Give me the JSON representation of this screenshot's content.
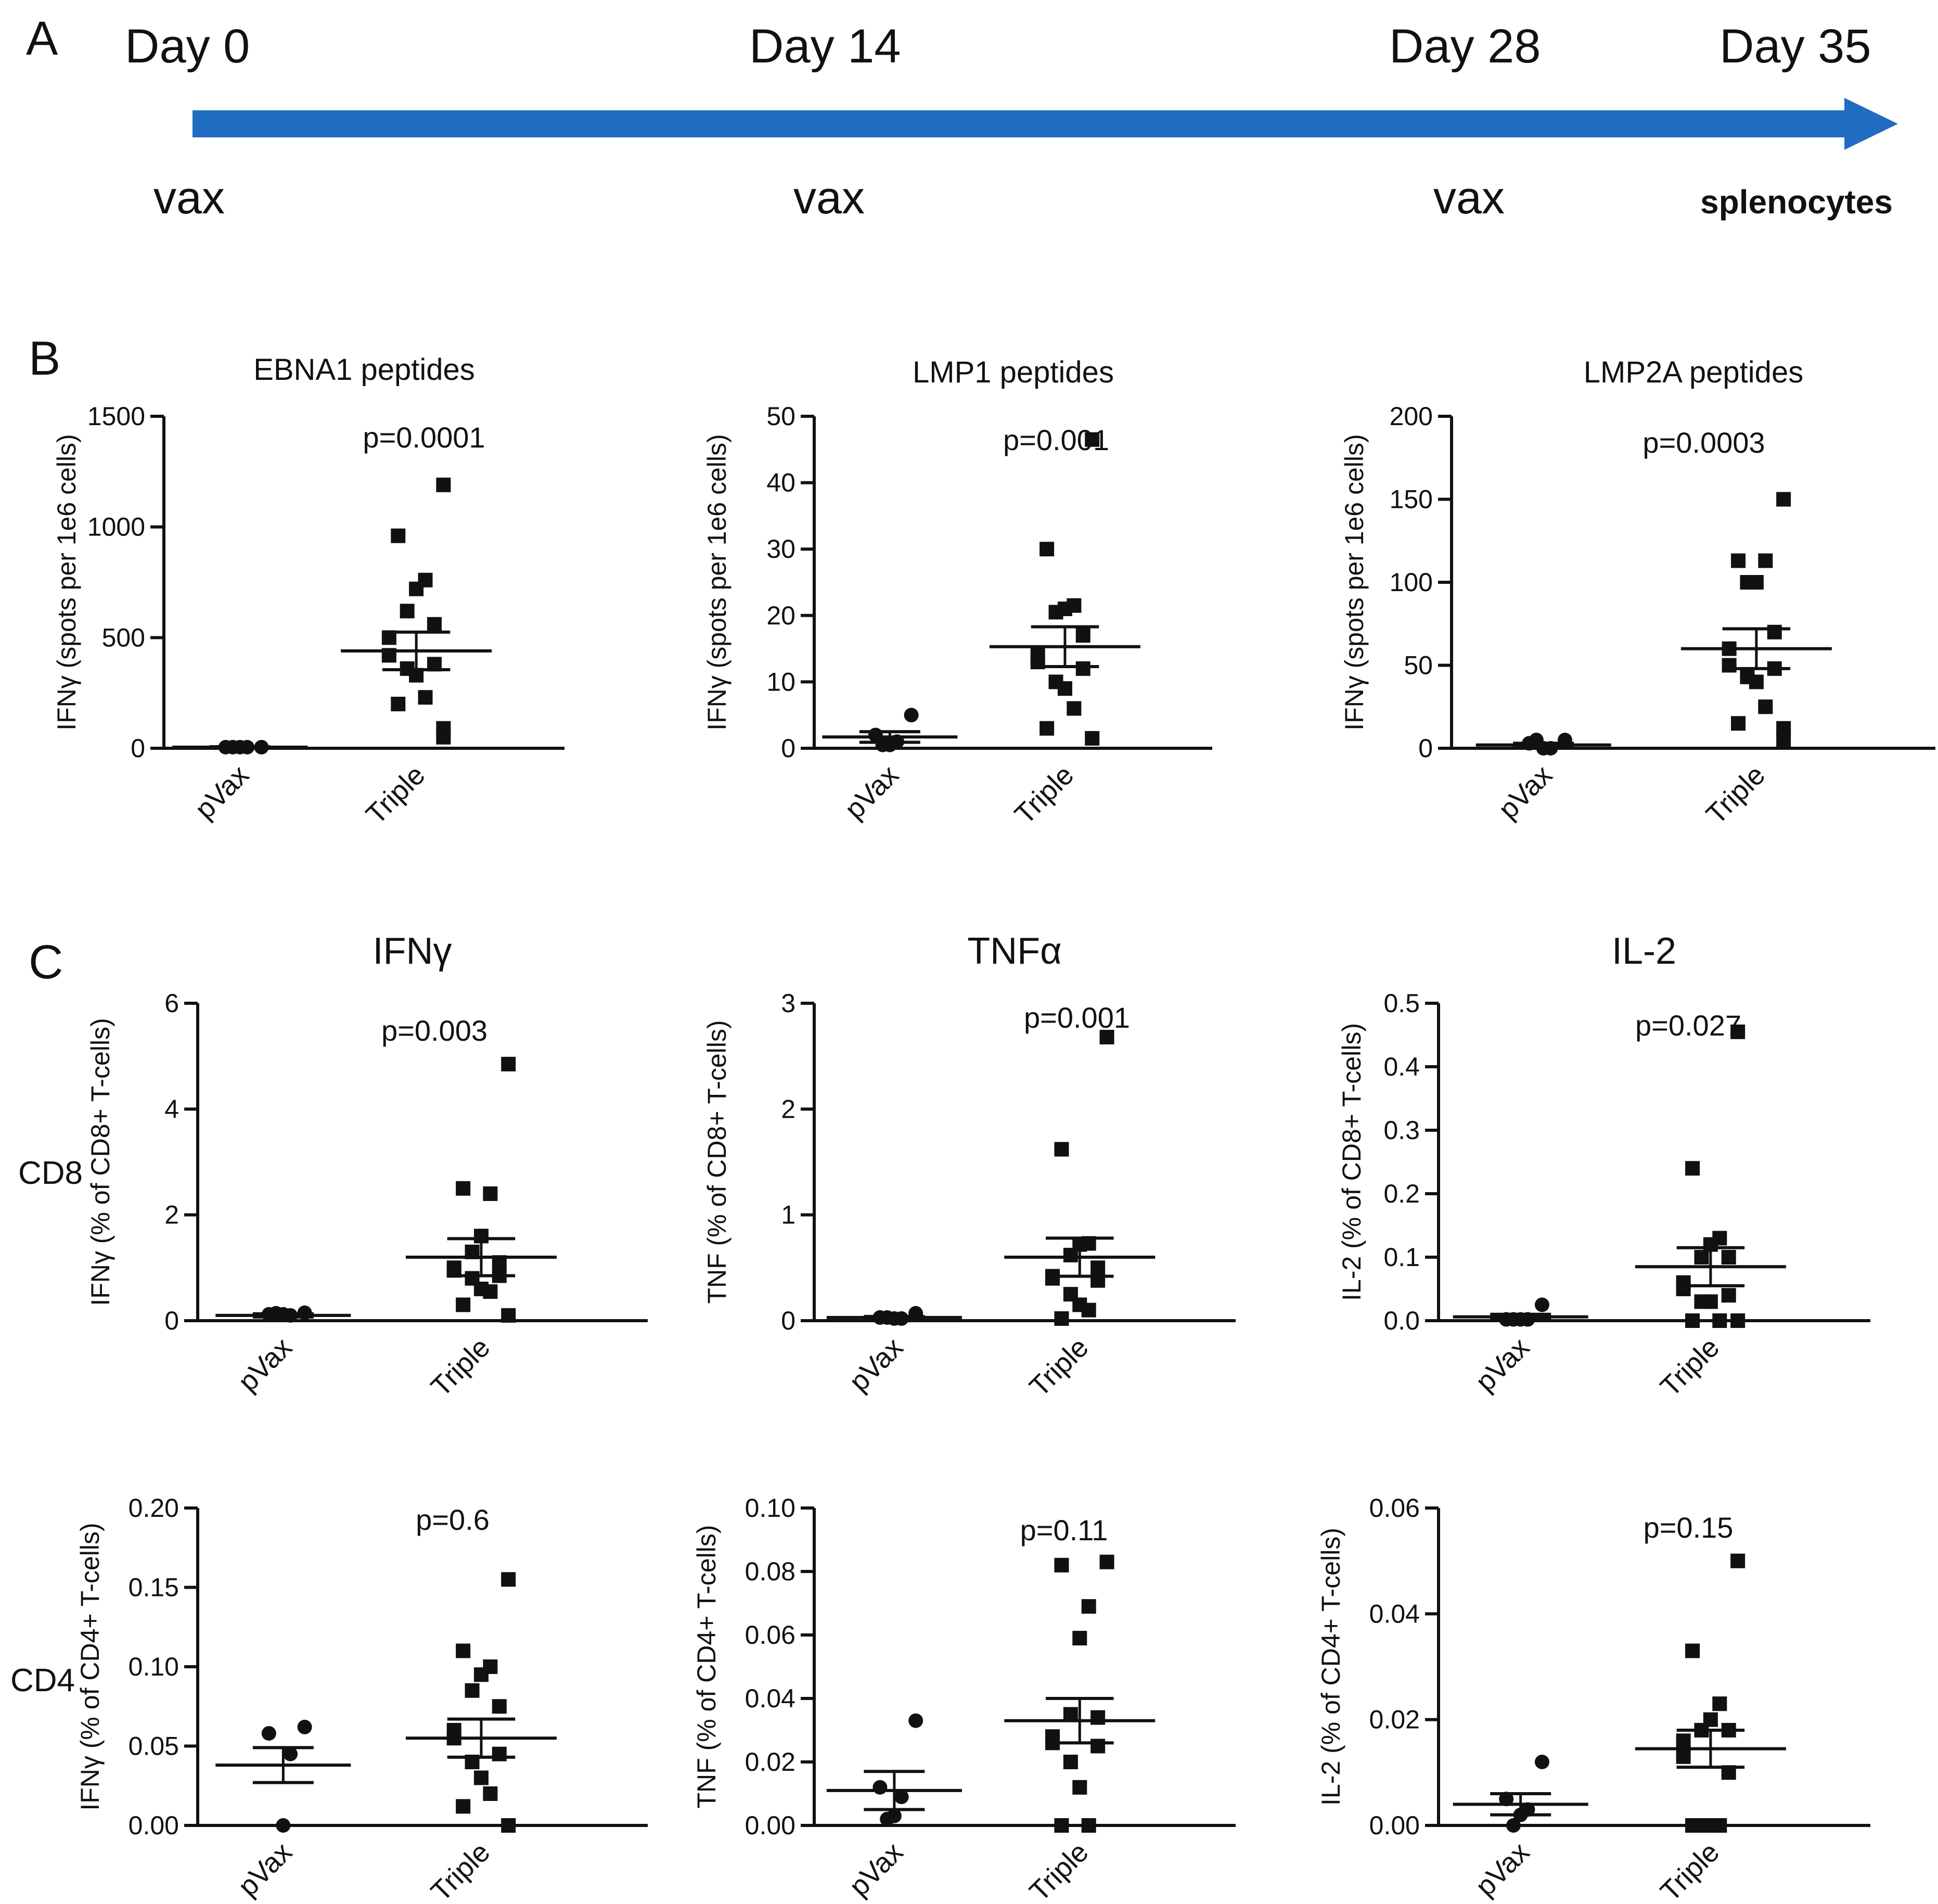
{
  "panels": {
    "a": "A",
    "b": "B",
    "c": "C"
  },
  "timeline": {
    "color": "#1f6cc0",
    "days": [
      "Day 0",
      "Day 14",
      "Day 28",
      "Day 35"
    ],
    "events": [
      "vax",
      "vax",
      "vax",
      "splenocytes"
    ]
  },
  "rows": {
    "cd8": "CD8",
    "cd4": "CD4"
  },
  "chart_data": [
    {
      "type": "scatter",
      "title": "EBNA1 peptides",
      "pvalue": "p=0.0001",
      "ylabel": "IFNγ (spots per 1e6 cells)",
      "ylim": [
        0,
        1500
      ],
      "yticks": [
        0,
        500,
        1000,
        1500
      ],
      "categories": [
        "pVax",
        "Triple"
      ],
      "series": [
        {
          "name": "pVax",
          "marker": "circle",
          "mean": 5,
          "sem": 2,
          "values": [
            5,
            5,
            5,
            5,
            5
          ]
        },
        {
          "name": "Triple",
          "marker": "square",
          "mean": 440,
          "sem": 85,
          "values": [
            1190,
            960,
            760,
            720,
            620,
            560,
            500,
            420,
            380,
            360,
            330,
            230,
            200,
            90,
            50
          ]
        }
      ]
    },
    {
      "type": "scatter",
      "title": "LMP1 peptides",
      "pvalue": "p=0.001",
      "ylabel": "IFNγ (spots per 1e6 cells)",
      "ylim": [
        0,
        50
      ],
      "yticks": [
        0,
        10,
        20,
        30,
        40,
        50
      ],
      "categories": [
        "pVax",
        "Triple"
      ],
      "series": [
        {
          "name": "pVax",
          "marker": "circle",
          "mean": 1.7,
          "sem": 0.8,
          "values": [
            5,
            2,
            1,
            0.5,
            0.5
          ]
        },
        {
          "name": "Triple",
          "marker": "square",
          "mean": 15.3,
          "sem": 3,
          "values": [
            46.5,
            30,
            21.5,
            21,
            20.5,
            17,
            14,
            13,
            12,
            10,
            9,
            6,
            3,
            1.5
          ]
        }
      ]
    },
    {
      "type": "scatter",
      "title": "LMP2A peptides",
      "pvalue": "p=0.0003",
      "ylabel": "IFNγ (spots per 1e6 cells)",
      "ylim": [
        0,
        200
      ],
      "yticks": [
        0,
        50,
        100,
        150,
        200
      ],
      "categories": [
        "pVax",
        "Triple"
      ],
      "series": [
        {
          "name": "pVax",
          "marker": "circle",
          "mean": 2,
          "sem": 1,
          "values": [
            5,
            3,
            0,
            0,
            5
          ]
        },
        {
          "name": "Triple",
          "marker": "square",
          "mean": 60,
          "sem": 12,
          "values": [
            150,
            113,
            113,
            100,
            100,
            70,
            60,
            50,
            48,
            43,
            40,
            25,
            15,
            12,
            5
          ]
        }
      ]
    },
    {
      "type": "scatter",
      "title": "IFNγ",
      "pvalue": "p=0.003",
      "ylabel": "IFNγ (% of CD8+ T-cells)",
      "ylim": [
        0,
        6
      ],
      "yticks": [
        0,
        2,
        4,
        6
      ],
      "categories": [
        "pVax",
        "Triple"
      ],
      "series": [
        {
          "name": "pVax",
          "marker": "circle",
          "mean": 0.1,
          "sem": 0.03,
          "values": [
            0.15,
            0.12,
            0.1,
            0.12,
            0.14
          ]
        },
        {
          "name": "Triple",
          "marker": "square",
          "mean": 1.2,
          "sem": 0.35,
          "values": [
            4.85,
            2.5,
            2.4,
            1.6,
            1.3,
            1.1,
            1.0,
            0.95,
            0.85,
            0.8,
            0.6,
            0.55,
            0.3,
            0.1
          ]
        }
      ]
    },
    {
      "type": "scatter",
      "title": "TNFα",
      "pvalue": "p=0.001",
      "ylabel": "TNF (% of CD8+ T-cells)",
      "ylim": [
        0,
        3
      ],
      "yticks": [
        0,
        1,
        2,
        3
      ],
      "categories": [
        "pVax",
        "Triple"
      ],
      "series": [
        {
          "name": "pVax",
          "marker": "circle",
          "mean": 0.03,
          "sem": 0.01,
          "values": [
            0.07,
            0.03,
            0.02,
            0.02,
            0.03
          ]
        },
        {
          "name": "Triple",
          "marker": "square",
          "mean": 0.6,
          "sem": 0.18,
          "values": [
            2.68,
            1.62,
            0.73,
            0.72,
            0.62,
            0.5,
            0.42,
            0.4,
            0.38,
            0.25,
            0.15,
            0.1,
            0.02
          ]
        }
      ]
    },
    {
      "type": "scatter",
      "title": "IL-2",
      "pvalue": "p=0.027",
      "ylabel": "IL-2 (% of CD8+ T-cells)",
      "ylim": [
        0,
        0.5
      ],
      "yticks": [
        0.0,
        0.1,
        0.2,
        0.3,
        0.4,
        0.5
      ],
      "tickdecimals": 1,
      "categories": [
        "pVax",
        "Triple"
      ],
      "series": [
        {
          "name": "pVax",
          "marker": "circle",
          "mean": 0.006,
          "sem": 0.004,
          "values": [
            0.025,
            0.002,
            0.002,
            0.002,
            0.002
          ]
        },
        {
          "name": "Triple",
          "marker": "square",
          "mean": 0.085,
          "sem": 0.03,
          "values": [
            0.455,
            0.24,
            0.13,
            0.12,
            0.1,
            0.1,
            0.06,
            0.05,
            0.04,
            0.03,
            0.03,
            0.0,
            0.0,
            0.0
          ]
        }
      ]
    },
    {
      "type": "scatter",
      "title": "",
      "pvalue": "p=0.6",
      "ylabel": "IFNγ (% of CD4+ T-cells)",
      "ylim": [
        0,
        0.2
      ],
      "yticks": [
        0.0,
        0.05,
        0.1,
        0.15,
        0.2
      ],
      "tickdecimals": 2,
      "categories": [
        "pVax",
        "Triple"
      ],
      "series": [
        {
          "name": "pVax",
          "marker": "circle",
          "mean": 0.038,
          "sem": 0.011,
          "values": [
            0.062,
            0.058,
            0.045,
            0.0
          ]
        },
        {
          "name": "Triple",
          "marker": "square",
          "mean": 0.055,
          "sem": 0.012,
          "values": [
            0.155,
            0.11,
            0.1,
            0.095,
            0.085,
            0.075,
            0.06,
            0.055,
            0.045,
            0.04,
            0.03,
            0.02,
            0.012,
            0.0
          ]
        }
      ]
    },
    {
      "type": "scatter",
      "title": "",
      "pvalue": "p=0.11",
      "ylabel": "TNF (% of CD4+ T-cells)",
      "ylim": [
        0,
        0.1
      ],
      "yticks": [
        0.0,
        0.02,
        0.04,
        0.06,
        0.08,
        0.1
      ],
      "tickdecimals": 2,
      "categories": [
        "pVax",
        "Triple"
      ],
      "series": [
        {
          "name": "pVax",
          "marker": "circle",
          "mean": 0.011,
          "sem": 0.006,
          "values": [
            0.033,
            0.012,
            0.009,
            0.003,
            0.002
          ]
        },
        {
          "name": "Triple",
          "marker": "square",
          "mean": 0.033,
          "sem": 0.007,
          "values": [
            0.083,
            0.082,
            0.069,
            0.059,
            0.035,
            0.034,
            0.028,
            0.026,
            0.025,
            0.02,
            0.012,
            0.0,
            0.0
          ]
        }
      ]
    },
    {
      "type": "scatter",
      "title": "",
      "pvalue": "p=0.15",
      "ylabel": "IL-2 (% of CD4+ T-cells)",
      "ylim": [
        0,
        0.06
      ],
      "yticks": [
        0.0,
        0.02,
        0.04,
        0.06
      ],
      "tickdecimals": 2,
      "categories": [
        "pVax",
        "Triple"
      ],
      "series": [
        {
          "name": "pVax",
          "marker": "circle",
          "mean": 0.004,
          "sem": 0.002,
          "values": [
            0.012,
            0.005,
            0.003,
            0.002,
            0.0
          ]
        },
        {
          "name": "Triple",
          "marker": "square",
          "mean": 0.0145,
          "sem": 0.0035,
          "values": [
            0.05,
            0.033,
            0.023,
            0.02,
            0.018,
            0.018,
            0.016,
            0.013,
            0.01,
            0.0,
            0.0,
            0.0,
            0.0
          ]
        }
      ]
    }
  ]
}
